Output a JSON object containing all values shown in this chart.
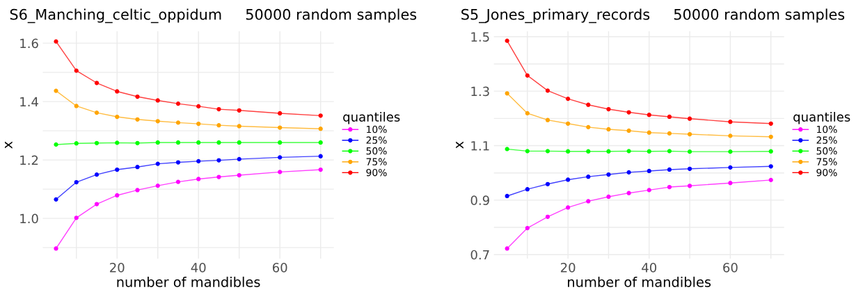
{
  "chart_data": [
    {
      "type": "line",
      "title": "S6_Manching_celtic_oppidum     50000 random samples",
      "xlabel": "number of mandibles",
      "ylabel": "x",
      "legend_title": "quantiles",
      "legend": "right",
      "grid": true,
      "marker": "circle",
      "line_style": "solid",
      "x": [
        5,
        10,
        15,
        20,
        25,
        30,
        35,
        40,
        45,
        50,
        60,
        70
      ],
      "xlim": [
        1.75,
        73.25
      ],
      "xticks": [
        {
          "value": 10,
          "label": null
        },
        20,
        {
          "value": 30,
          "label": null
        },
        40,
        {
          "value": 50,
          "label": null
        },
        60,
        {
          "value": 70,
          "label": null
        }
      ],
      "ylim": [
        0.862,
        1.641
      ],
      "yticks": [
        {
          "value": 0.9,
          "label": null
        },
        "1.0",
        {
          "value": 1.1,
          "label": null
        },
        1.2,
        {
          "value": 1.3,
          "label": null
        },
        1.4,
        {
          "value": 1.5,
          "label": null
        },
        1.6
      ],
      "series": [
        {
          "name": "10%",
          "color": "#ff00ff",
          "values": [
            0.897,
            1.002,
            1.049,
            1.079,
            1.097,
            1.112,
            1.125,
            1.135,
            1.142,
            1.148,
            1.159,
            1.167
          ]
        },
        {
          "name": "25%",
          "color": "#0000ff",
          "values": [
            1.065,
            1.124,
            1.15,
            1.167,
            1.176,
            1.187,
            1.192,
            1.196,
            1.199,
            1.203,
            1.209,
            1.213
          ]
        },
        {
          "name": "50%",
          "color": "#00ff00",
          "values": [
            1.253,
            1.257,
            1.258,
            1.259,
            1.258,
            1.26,
            1.26,
            1.26,
            1.26,
            1.26,
            1.26,
            1.26
          ]
        },
        {
          "name": "75%",
          "color": "#ffa500",
          "values": [
            1.437,
            1.385,
            1.362,
            1.348,
            1.339,
            1.333,
            1.328,
            1.324,
            1.319,
            1.316,
            1.311,
            1.307
          ]
        },
        {
          "name": "90%",
          "color": "#ff0000",
          "values": [
            1.606,
            1.506,
            1.464,
            1.435,
            1.417,
            1.404,
            1.393,
            1.384,
            1.374,
            1.37,
            1.36,
            1.352
          ]
        }
      ]
    },
    {
      "type": "line",
      "title": "S5_Jones_primary_records     50000 random samples",
      "xlabel": "number of mandibles",
      "ylabel": "x",
      "legend_title": "quantiles",
      "legend": "right",
      "grid": true,
      "marker": "circle",
      "line_style": "solid",
      "x": [
        5,
        10,
        15,
        20,
        25,
        30,
        35,
        40,
        45,
        50,
        60,
        70
      ],
      "xlim": [
        1.75,
        73.25
      ],
      "xticks": [
        {
          "value": 10,
          "label": null
        },
        20,
        {
          "value": 30,
          "label": null
        },
        40,
        {
          "value": 50,
          "label": null
        },
        60,
        {
          "value": 70,
          "label": null
        }
      ],
      "ylim": [
        0.685,
        1.52
      ],
      "yticks": [
        0.7,
        {
          "value": 0.8,
          "label": null
        },
        0.9,
        {
          "value": 1.0,
          "label": null
        },
        1.1,
        {
          "value": 1.2,
          "label": null
        },
        1.3,
        {
          "value": 1.4,
          "label": null
        },
        1.5
      ],
      "series": [
        {
          "name": "10%",
          "color": "#ff00ff",
          "values": [
            0.7225,
            0.7975,
            0.839,
            0.873,
            0.896,
            0.9125,
            0.926,
            0.937,
            0.948,
            0.9525,
            0.963,
            0.974
          ]
        },
        {
          "name": "25%",
          "color": "#0000ff",
          "values": [
            0.915,
            0.94,
            0.959,
            0.975,
            0.986,
            0.994,
            1.002,
            1.007,
            1.012,
            1.015,
            1.02,
            1.024
          ]
        },
        {
          "name": "50%",
          "color": "#00ff00",
          "values": [
            1.0875,
            1.08,
            1.08,
            1.079,
            1.079,
            1.079,
            1.08,
            1.079,
            1.08,
            1.078,
            1.078,
            1.079
          ]
        },
        {
          "name": "75%",
          "color": "#ffa500",
          "values": [
            1.292,
            1.219,
            1.194,
            1.181,
            1.168,
            1.16,
            1.155,
            1.148,
            1.145,
            1.142,
            1.136,
            1.1325
          ]
        },
        {
          "name": "90%",
          "color": "#ff0000",
          "values": [
            1.485,
            1.3575,
            1.302,
            1.272,
            1.25,
            1.234,
            1.2225,
            1.213,
            1.206,
            1.199,
            1.1875,
            1.181
          ]
        }
      ]
    }
  ]
}
